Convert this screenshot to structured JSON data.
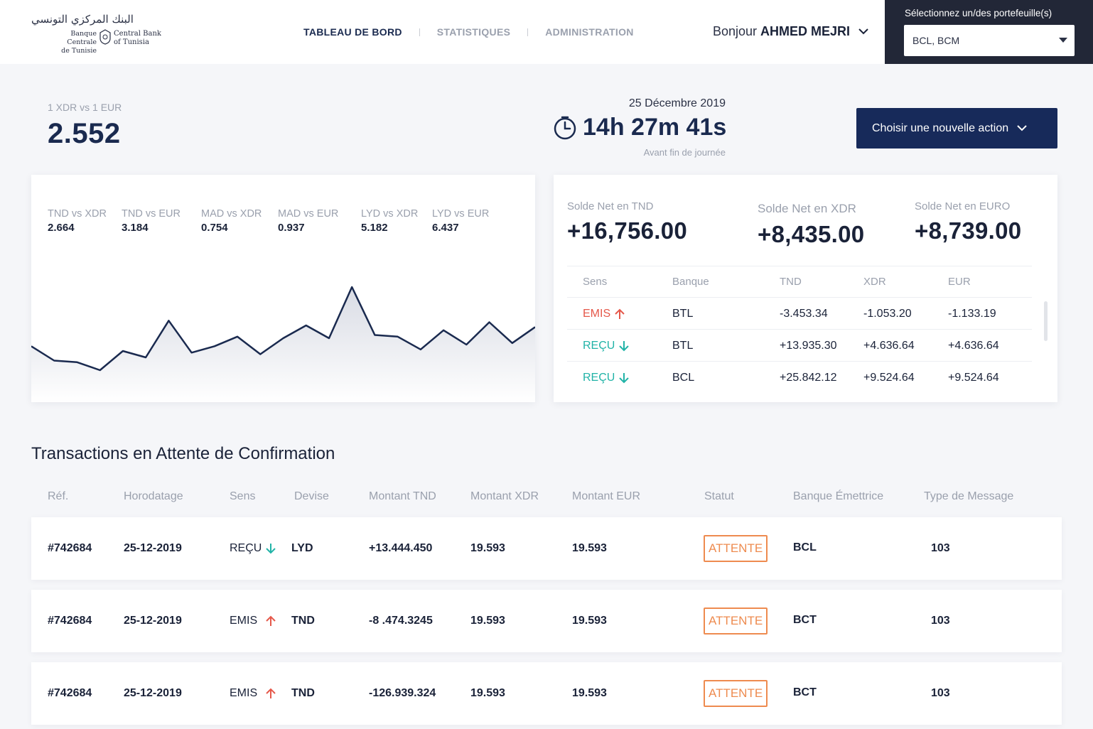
{
  "logo": {
    "arabic": "البنك المركزي التونسي",
    "fr_line1": "Banque Centrale",
    "fr_line2": "de Tunisie",
    "en_line1": "Central Bank",
    "en_line2": "of Tunisia"
  },
  "nav": {
    "items": [
      {
        "label": "TABLEAU DE BORD",
        "active": true
      },
      {
        "label": "STATISTIQUES",
        "active": false
      },
      {
        "label": "ADMINISTRATION",
        "active": false
      }
    ]
  },
  "user": {
    "greeting": "Bonjour",
    "name": "AHMED MEJRI"
  },
  "portfolio": {
    "label": "Sélectionnez un/des portefeuille(s)",
    "value": "BCL, BCM"
  },
  "rate": {
    "label": "1 XDR vs 1 EUR",
    "value": "2.552"
  },
  "clock": {
    "date": "25 Décembre 2019",
    "remaining": "14h 27m 41s",
    "caption": "Avant fin de journée"
  },
  "action_button": {
    "label": "Choisir une nouvelle action"
  },
  "rates_panel": [
    {
      "pair": "TND vs XDR",
      "value": "2.664"
    },
    {
      "pair": "TND vs EUR",
      "value": "3.184"
    },
    {
      "pair": "MAD vs XDR",
      "value": "0.754"
    },
    {
      "pair": "MAD vs EUR",
      "value": "0.937"
    },
    {
      "pair": "LYD vs XDR",
      "value": "5.182"
    },
    {
      "pair": "LYD vs EUR",
      "value": "6.437"
    }
  ],
  "chart_data": {
    "type": "area",
    "x": [
      0,
      1,
      2,
      3,
      4,
      5,
      6,
      7,
      8,
      9,
      10,
      11,
      12,
      13,
      14,
      15,
      16,
      17,
      18,
      19,
      20,
      21,
      22
    ],
    "values": [
      35,
      26,
      25,
      20,
      32,
      28,
      51,
      31,
      35,
      41,
      30,
      40,
      48,
      40,
      72,
      42,
      41,
      33,
      45,
      36,
      50,
      37,
      47
    ],
    "ylim": [
      0,
      100
    ],
    "color": "#1a2a4f",
    "grid": false
  },
  "balances": [
    {
      "label": "Solde Net en TND",
      "value": "+16,756.00"
    },
    {
      "label": "Solde Net en XDR",
      "value": "+8,435.00"
    },
    {
      "label": "Solde Net en EURO",
      "value": "+8,739.00"
    }
  ],
  "balance_table": {
    "headers": [
      "Sens",
      "Banque",
      "TND",
      "XDR",
      "EUR"
    ],
    "rows": [
      {
        "sens": "EMIS",
        "dir": "up",
        "banque": "BTL",
        "tnd": "-3.453.34",
        "xdr": "-1.053.20",
        "eur": "-1.133.19"
      },
      {
        "sens": "REÇU",
        "dir": "down",
        "banque": "BTL",
        "tnd": "+13.935.30",
        "xdr": "+4.636.64",
        "eur": "+4.636.64"
      },
      {
        "sens": "REÇU",
        "dir": "down",
        "banque": "BCL",
        "tnd": "+25.842.12",
        "xdr": "+9.524.64",
        "eur": "+9.524.64"
      }
    ]
  },
  "transactions": {
    "title": "Transactions en Attente de Confirmation",
    "headers": [
      "Réf.",
      "Horodatage",
      "Sens",
      "Devise",
      "Montant TND",
      "Montant XDR",
      "Montant EUR",
      "Statut",
      "Banque Émettrice",
      "Type de Message"
    ],
    "rows": [
      {
        "ref": "#742684",
        "date": "25-12-2019",
        "sens": "REÇU",
        "dir": "down",
        "devise": "LYD",
        "tnd": "+13.444.450",
        "xdr": "19.593",
        "eur": "19.593",
        "statut": "ATTENTE",
        "banque": "BCL",
        "type": "103"
      },
      {
        "ref": "#742684",
        "date": "25-12-2019",
        "sens": "EMIS",
        "dir": "up",
        "devise": "TND",
        "tnd": "-8 .474.3245",
        "xdr": "19.593",
        "eur": "19.593",
        "statut": "ATTENTE",
        "banque": "BCT",
        "type": "103"
      },
      {
        "ref": "#742684",
        "date": "25-12-2019",
        "sens": "EMIS",
        "dir": "up",
        "devise": "TND",
        "tnd": "-126.939.324",
        "xdr": "19.593",
        "eur": "19.593",
        "statut": "ATTENTE",
        "banque": "BCT",
        "type": "103"
      }
    ]
  },
  "colors": {
    "primary": "#172a5a",
    "emis": "#e5584a",
    "recu": "#21b3a7",
    "attente": "#ee8b4f",
    "dark_panel": "#222737"
  }
}
